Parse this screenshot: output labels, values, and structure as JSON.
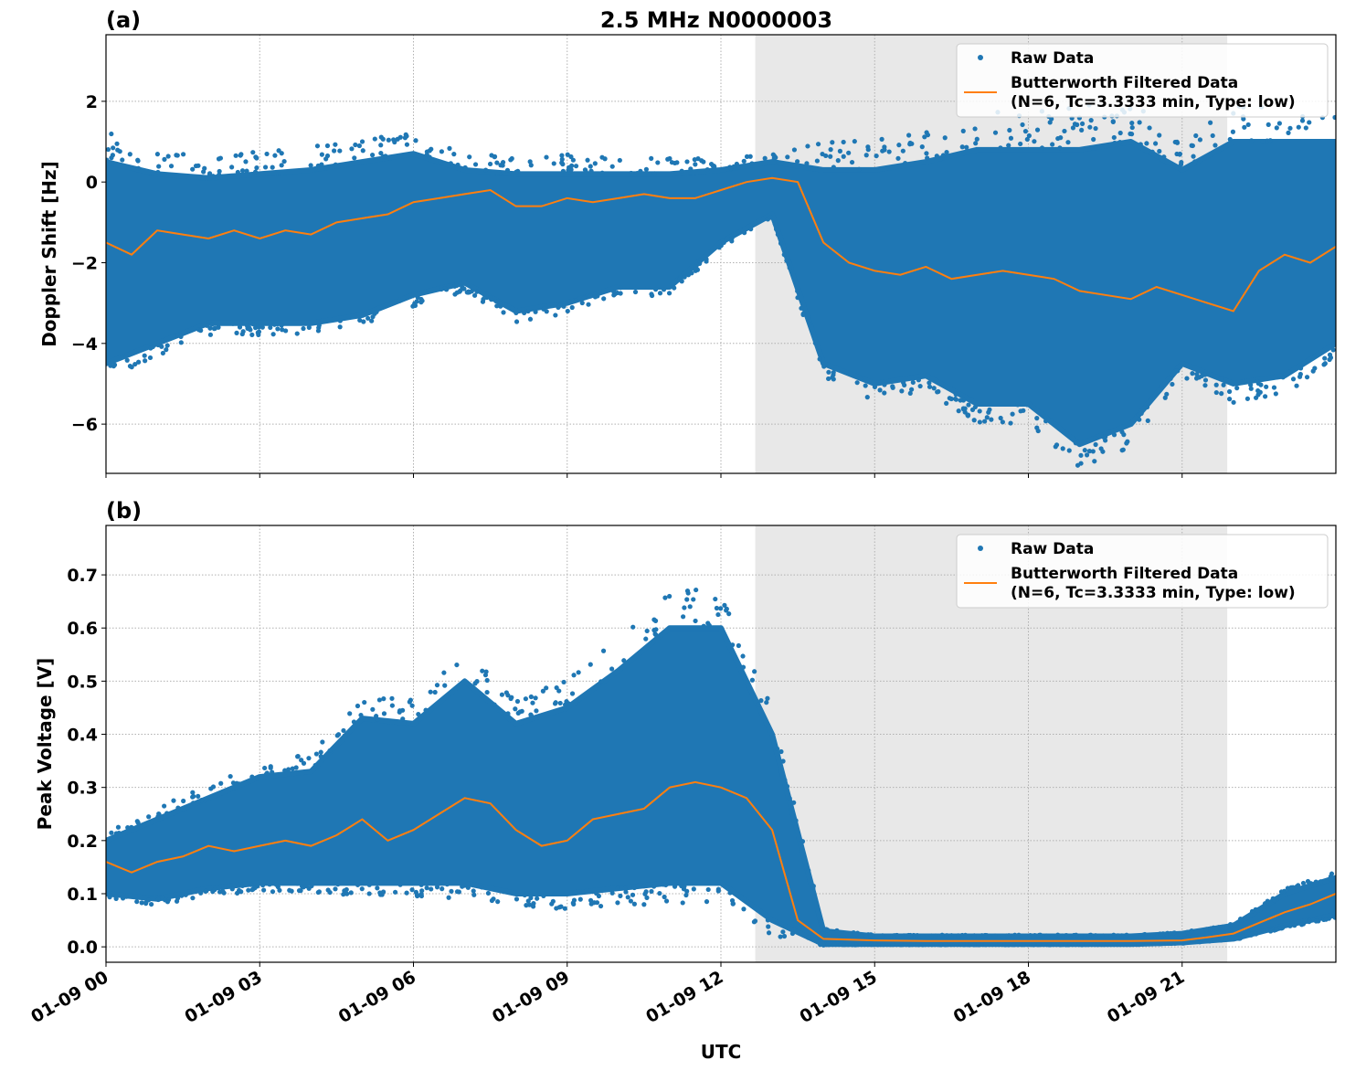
{
  "title": "2.5 MHz N0000003",
  "xlabel": "UTC",
  "chart_data": [
    {
      "type": "scatter",
      "panel_label": "(a)",
      "ylabel": "Doppler Shift [Hz]",
      "xlabel": "UTC",
      "xlim_hours": [
        0,
        24
      ],
      "ylim": [
        -7.22,
        3.65
      ],
      "grid": true,
      "legend_placement": "top-right",
      "x_tick_labels": [
        "01-09 00",
        "01-09 03",
        "01-09 06",
        "01-09 09",
        "01-09 12",
        "01-09 15",
        "01-09 18",
        "01-09 21"
      ],
      "x_tick_hours": [
        0,
        3,
        6,
        9,
        12,
        15,
        18,
        21
      ],
      "y_ticks": [
        2,
        0,
        -2,
        -4,
        -6
      ],
      "y_tick_labels": [
        "2",
        "0",
        "−2",
        "−4",
        "−6"
      ],
      "shaded_span_hours": [
        12.67,
        21.88
      ],
      "shade_color": "#e8e8e8",
      "legend": [
        "Raw Data",
        "Butterworth Filtered Data",
        "(N=6, Tc=3.3333 min, Type: low)"
      ],
      "series": [
        {
          "name": "Raw Data",
          "kind": "scatter",
          "color": "#1f77b4",
          "envelope_hours": [
            0,
            1,
            2,
            3,
            4,
            5,
            6,
            7,
            8,
            9,
            10,
            11,
            12,
            13,
            14,
            15,
            16,
            17,
            18,
            19,
            20,
            21,
            22,
            23,
            24
          ],
          "upper": [
            0.5,
            0.2,
            0.1,
            0.2,
            0.3,
            0.5,
            0.7,
            0.3,
            0.2,
            0.2,
            0.2,
            0.2,
            0.3,
            0.5,
            0.3,
            0.3,
            0.5,
            0.8,
            0.8,
            0.8,
            1.0,
            0.3,
            1.0,
            1.0,
            1.0
          ],
          "lower": [
            -4.5,
            -4,
            -3.5,
            -3.5,
            -3.5,
            -3.3,
            -2.8,
            -2.5,
            -3.2,
            -3,
            -2.6,
            -2.6,
            -1.5,
            -0.8,
            -4.5,
            -5,
            -4.8,
            -5.5,
            -5.5,
            -6.5,
            -6.0,
            -4.5,
            -5,
            -4.8,
            -4
          ]
        },
        {
          "name": "Butterworth Filtered Data (N=6, Tc=3.3333 min, Type: low)",
          "kind": "line",
          "color": "#ff7f0e",
          "x_hours": [
            0,
            0.5,
            1,
            1.5,
            2,
            2.5,
            3,
            3.5,
            4,
            4.5,
            5,
            5.5,
            6,
            6.5,
            7,
            7.5,
            8,
            8.5,
            9,
            9.5,
            10,
            10.5,
            11,
            11.5,
            12,
            12.5,
            13,
            13.5,
            14,
            14.5,
            15,
            15.5,
            16,
            16.5,
            17,
            17.5,
            18,
            18.5,
            19,
            19.5,
            20,
            20.5,
            21,
            21.5,
            22,
            22.5,
            23,
            23.5,
            24
          ],
          "y": [
            -1.5,
            -1.8,
            -1.2,
            -1.3,
            -1.4,
            -1.2,
            -1.4,
            -1.2,
            -1.3,
            -1.0,
            -0.9,
            -0.8,
            -0.5,
            -0.4,
            -0.3,
            -0.2,
            -0.6,
            -0.6,
            -0.4,
            -0.5,
            -0.4,
            -0.3,
            -0.4,
            -0.4,
            -0.2,
            0.0,
            0.1,
            0.0,
            -1.5,
            -2.0,
            -2.2,
            -2.3,
            -2.1,
            -2.4,
            -2.3,
            -2.2,
            -2.3,
            -2.4,
            -2.7,
            -2.8,
            -2.9,
            -2.6,
            -2.8,
            -3.0,
            -3.2,
            -2.2,
            -1.8,
            -2.0,
            -1.6
          ]
        }
      ]
    },
    {
      "type": "scatter",
      "panel_label": "(b)",
      "ylabel": "Peak Voltage [V]",
      "xlabel": "UTC",
      "xlim_hours": [
        0,
        24
      ],
      "ylim": [
        -0.029,
        0.793
      ],
      "grid": true,
      "legend_placement": "top-right",
      "x_tick_labels": [
        "01-09 00",
        "01-09 03",
        "01-09 06",
        "01-09 09",
        "01-09 12",
        "01-09 15",
        "01-09 18",
        "01-09 21"
      ],
      "x_tick_hours": [
        0,
        3,
        6,
        9,
        12,
        15,
        18,
        21
      ],
      "y_ticks": [
        0.7,
        0.6,
        0.5,
        0.4,
        0.3,
        0.2,
        0.1,
        0.0
      ],
      "y_tick_labels": [
        "0.7",
        "0.6",
        "0.5",
        "0.4",
        "0.3",
        "0.2",
        "0.1",
        "0.0"
      ],
      "shaded_span_hours": [
        12.67,
        21.88
      ],
      "shade_color": "#e8e8e8",
      "legend": [
        "Raw Data",
        "Butterworth Filtered Data",
        "(N=6, Tc=3.3333 min, Type: low)"
      ],
      "series": [
        {
          "name": "Raw Data",
          "kind": "scatter",
          "color": "#1f77b4",
          "envelope_hours": [
            0,
            1,
            2,
            3,
            4,
            5,
            6,
            7,
            8,
            9,
            10,
            11,
            12,
            13,
            14,
            15,
            16,
            17,
            18,
            19,
            20,
            21,
            22,
            23,
            24
          ],
          "upper": [
            0.2,
            0.24,
            0.28,
            0.32,
            0.33,
            0.43,
            0.42,
            0.5,
            0.42,
            0.45,
            0.52,
            0.6,
            0.6,
            0.4,
            0.03,
            0.02,
            0.02,
            0.02,
            0.02,
            0.02,
            0.02,
            0.025,
            0.04,
            0.1,
            0.13
          ],
          "lower": [
            0.1,
            0.09,
            0.11,
            0.12,
            0.12,
            0.12,
            0.12,
            0.12,
            0.1,
            0.1,
            0.11,
            0.12,
            0.12,
            0.05,
            0.005,
            0.005,
            0.005,
            0.005,
            0.005,
            0.005,
            0.005,
            0.008,
            0.015,
            0.04,
            0.06
          ]
        },
        {
          "name": "Butterworth Filtered Data (N=6, Tc=3.3333 min, Type: low)",
          "kind": "line",
          "color": "#ff7f0e",
          "x_hours": [
            0,
            0.5,
            1,
            1.5,
            2,
            2.5,
            3,
            3.5,
            4,
            4.5,
            5,
            5.5,
            6,
            6.5,
            7,
            7.5,
            8,
            8.5,
            9,
            9.5,
            10,
            10.5,
            11,
            11.5,
            12,
            12.5,
            13,
            13.5,
            14,
            15,
            16,
            17,
            18,
            19,
            20,
            21,
            21.5,
            22,
            22.5,
            23,
            23.5,
            24
          ],
          "y": [
            0.16,
            0.14,
            0.16,
            0.17,
            0.19,
            0.18,
            0.19,
            0.2,
            0.19,
            0.21,
            0.24,
            0.2,
            0.22,
            0.25,
            0.28,
            0.27,
            0.22,
            0.19,
            0.2,
            0.24,
            0.25,
            0.26,
            0.3,
            0.31,
            0.3,
            0.28,
            0.22,
            0.05,
            0.015,
            0.012,
            0.011,
            0.011,
            0.011,
            0.011,
            0.011,
            0.012,
            0.018,
            0.025,
            0.045,
            0.065,
            0.08,
            0.1
          ]
        }
      ]
    }
  ]
}
